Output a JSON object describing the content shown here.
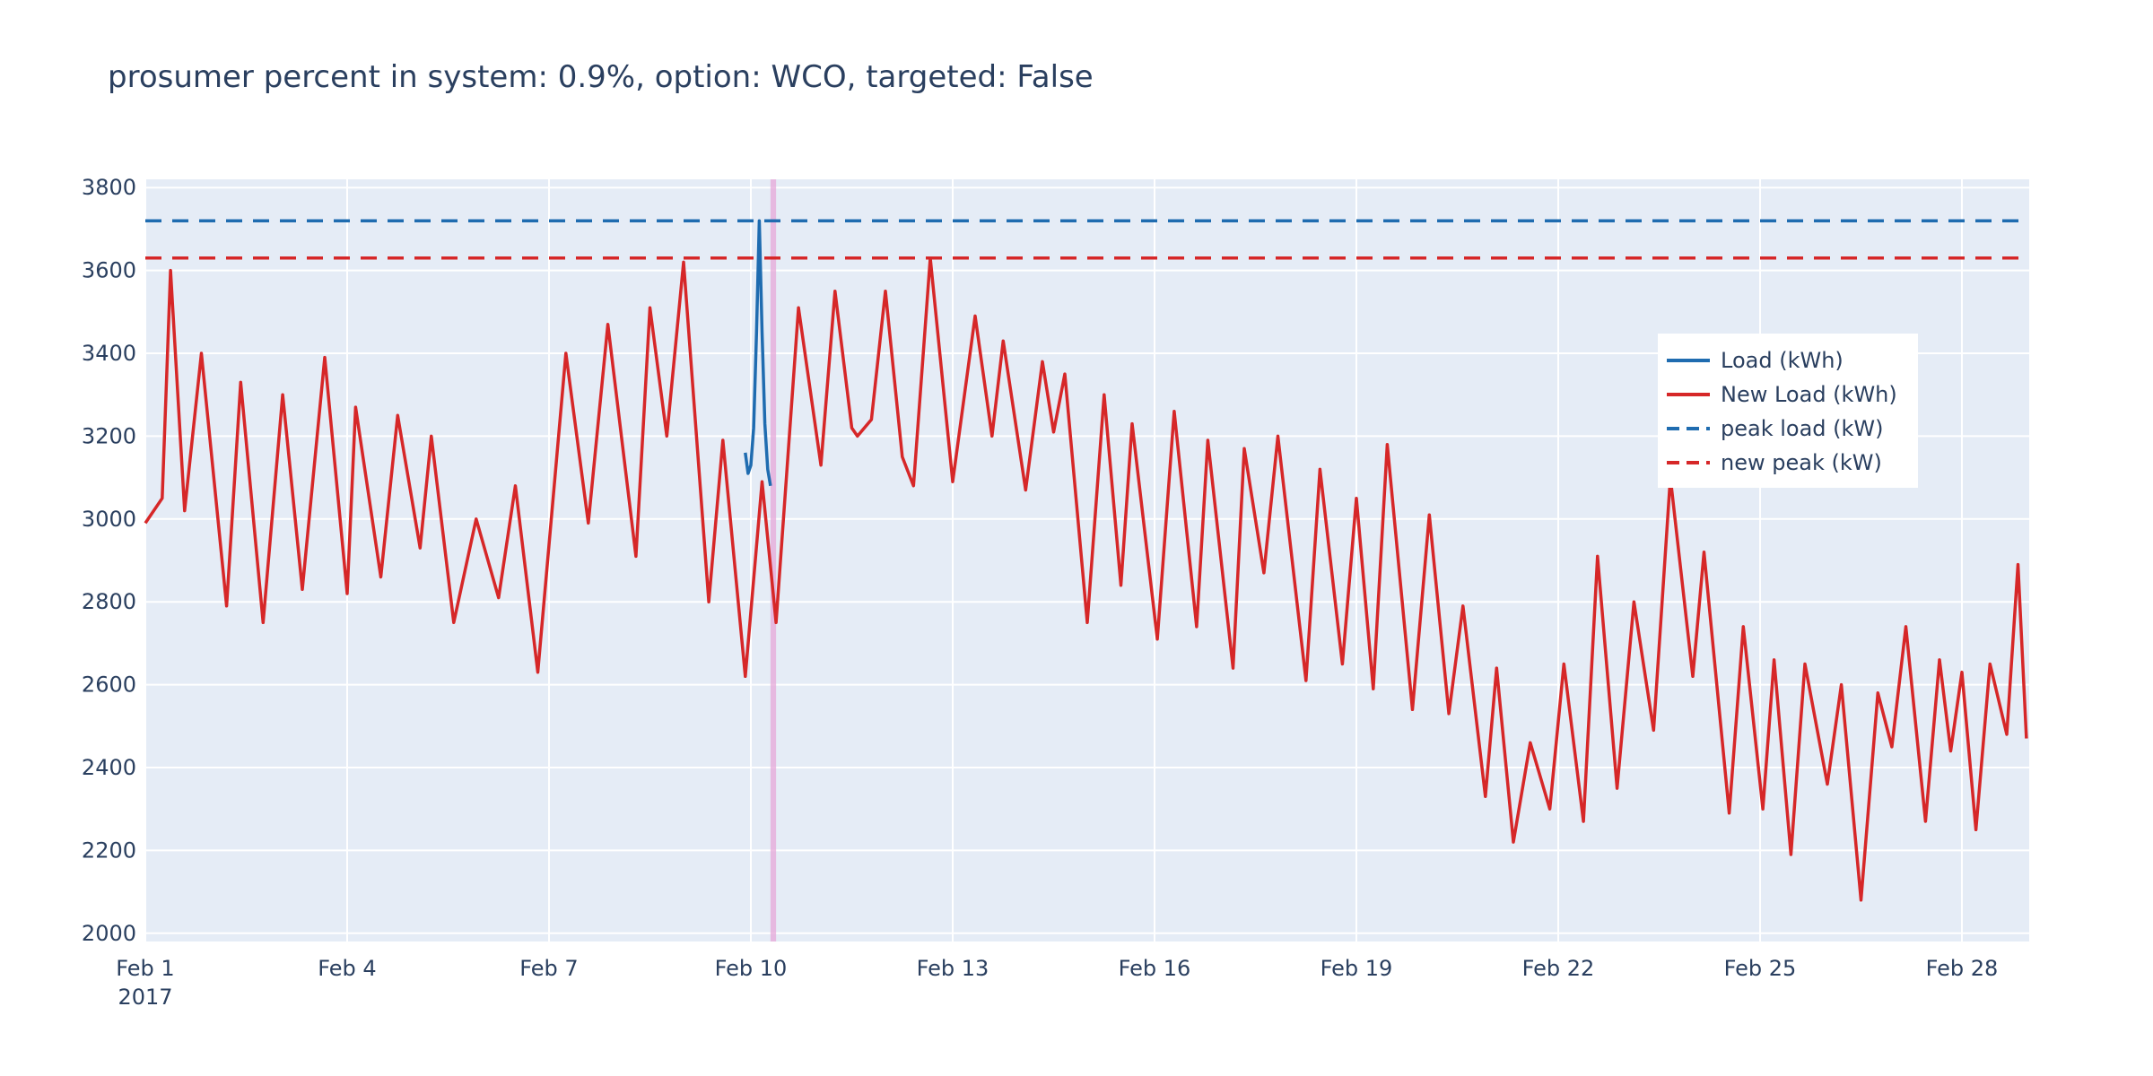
{
  "chart_data": {
    "type": "line",
    "title": "prosumer percent in system: 0.9%, option: WCO, targeted: False",
    "xlabel": "",
    "ylabel": "",
    "x_start": "2017-02-01",
    "x_end": "2017-02-28T23:00",
    "xlim": [
      "2017-02-01",
      "2017-03-01"
    ],
    "ylim": [
      1980,
      3820
    ],
    "y_ticks": [
      2000,
      2200,
      2400,
      2600,
      2800,
      3000,
      3200,
      3400,
      3600,
      3800
    ],
    "x_tick_labels": [
      {
        "date": "2017-02-01",
        "label": "Feb 1",
        "sublabel": "2017"
      },
      {
        "date": "2017-02-04",
        "label": "Feb 4"
      },
      {
        "date": "2017-02-07",
        "label": "Feb 7"
      },
      {
        "date": "2017-02-10",
        "label": "Feb 10"
      },
      {
        "date": "2017-02-13",
        "label": "Feb 13"
      },
      {
        "date": "2017-02-16",
        "label": "Feb 16"
      },
      {
        "date": "2017-02-19",
        "label": "Feb 19"
      },
      {
        "date": "2017-02-22",
        "label": "Feb 22"
      },
      {
        "date": "2017-02-25",
        "label": "Feb 25"
      },
      {
        "date": "2017-02-28",
        "label": "Feb 28"
      }
    ],
    "grid": true,
    "legend_position": "right",
    "highlight_band": {
      "start": "2017-02-10T07:00",
      "end": "2017-02-10T09:00",
      "color": "#e6a8d8"
    },
    "series": [
      {
        "name": "Load (kWh)",
        "style": "solid",
        "color": "#1f6cb0",
        "note_values": "identical to New Load except around Feb 10",
        "segment": {
          "start": "2017-02-09T22:00",
          "values": [
            3160,
            3110,
            3130,
            3220,
            3450,
            3720,
            3450,
            3230,
            3120,
            3080
          ]
        }
      },
      {
        "name": "New Load (kWh)",
        "style": "solid",
        "color": "#d62728",
        "day_peaks": [
          3600,
          3400,
          3330,
          3390,
          3270,
          3250,
          3200,
          3080,
          3400,
          3470,
          3620,
          3190,
          3090,
          3510,
          3550,
          3630,
          3430,
          3380,
          3350,
          3300,
          3230,
          3260,
          3190,
          3200,
          3120,
          3050,
          3180,
          3010,
          2790,
          2640,
          2470,
          2660,
          2910,
          2800,
          3100,
          2920,
          2730,
          2660,
          2650,
          2600,
          2580,
          2740,
          2660,
          2630,
          2650,
          2890,
          2880,
          2780,
          2930,
          2730
        ],
        "series_anchor": [
          [
            "2017-02-01T00:00",
            2990
          ],
          [
            "2017-02-01T06:00",
            3050
          ],
          [
            "2017-02-01T09:00",
            3600
          ],
          [
            "2017-02-01T14:00",
            3020
          ],
          [
            "2017-02-01T20:00",
            3400
          ],
          [
            "2017-02-02T05:00",
            2790
          ],
          [
            "2017-02-02T10:00",
            3330
          ],
          [
            "2017-02-02T18:00",
            2750
          ],
          [
            "2017-02-03T01:00",
            3300
          ],
          [
            "2017-02-03T08:00",
            2830
          ],
          [
            "2017-02-03T16:00",
            3390
          ],
          [
            "2017-02-04T00:00",
            2820
          ],
          [
            "2017-02-04T03:00",
            3270
          ],
          [
            "2017-02-04T12:00",
            2860
          ],
          [
            "2017-02-04T18:00",
            3250
          ],
          [
            "2017-02-05T02:00",
            2930
          ],
          [
            "2017-02-05T06:00",
            3200
          ],
          [
            "2017-02-05T14:00",
            2750
          ],
          [
            "2017-02-05T22:00",
            3000
          ],
          [
            "2017-02-06T06:00",
            2810
          ],
          [
            "2017-02-06T12:00",
            3080
          ],
          [
            "2017-02-06T20:00",
            2630
          ],
          [
            "2017-02-07T06:00",
            3400
          ],
          [
            "2017-02-07T14:00",
            2990
          ],
          [
            "2017-02-07T21:00",
            3470
          ],
          [
            "2017-02-08T07:00",
            2910
          ],
          [
            "2017-02-08T12:00",
            3510
          ],
          [
            "2017-02-08T18:00",
            3200
          ],
          [
            "2017-02-09T00:00",
            3620
          ],
          [
            "2017-02-09T09:00",
            2800
          ],
          [
            "2017-02-09T14:00",
            3190
          ],
          [
            "2017-02-09T22:00",
            2620
          ],
          [
            "2017-02-10T04:00",
            3090
          ],
          [
            "2017-02-10T09:00",
            2750
          ],
          [
            "2017-02-10T17:00",
            3510
          ],
          [
            "2017-02-11T01:00",
            3130
          ],
          [
            "2017-02-11T06:00",
            3550
          ],
          [
            "2017-02-11T12:00",
            3220
          ],
          [
            "2017-02-11T14:00",
            3200
          ],
          [
            "2017-02-11T19:00",
            3240
          ],
          [
            "2017-02-12T00:00",
            3550
          ],
          [
            "2017-02-12T06:00",
            3150
          ],
          [
            "2017-02-12T10:00",
            3080
          ],
          [
            "2017-02-12T16:00",
            3630
          ],
          [
            "2017-02-13T00:00",
            3090
          ],
          [
            "2017-02-13T08:00",
            3490
          ],
          [
            "2017-02-13T14:00",
            3200
          ],
          [
            "2017-02-13T18:00",
            3430
          ],
          [
            "2017-02-14T02:00",
            3070
          ],
          [
            "2017-02-14T08:00",
            3380
          ],
          [
            "2017-02-14T12:00",
            3210
          ],
          [
            "2017-02-14T16:00",
            3350
          ],
          [
            "2017-02-15T00:00",
            2750
          ],
          [
            "2017-02-15T06:00",
            3300
          ],
          [
            "2017-02-15T12:00",
            2840
          ],
          [
            "2017-02-15T16:00",
            3230
          ],
          [
            "2017-02-16T01:00",
            2710
          ],
          [
            "2017-02-16T07:00",
            3260
          ],
          [
            "2017-02-16T15:00",
            2740
          ],
          [
            "2017-02-16T19:00",
            3190
          ],
          [
            "2017-02-17T04:00",
            2640
          ],
          [
            "2017-02-17T08:00",
            3170
          ],
          [
            "2017-02-17T15:00",
            2870
          ],
          [
            "2017-02-17T20:00",
            3200
          ],
          [
            "2017-02-18T06:00",
            2610
          ],
          [
            "2017-02-18T11:00",
            3120
          ],
          [
            "2017-02-18T19:00",
            2650
          ],
          [
            "2017-02-19T00:00",
            3050
          ],
          [
            "2017-02-19T06:00",
            2590
          ],
          [
            "2017-02-19T11:00",
            3180
          ],
          [
            "2017-02-19T20:00",
            2540
          ],
          [
            "2017-02-20T02:00",
            3010
          ],
          [
            "2017-02-20T09:00",
            2530
          ],
          [
            "2017-02-20T14:00",
            2790
          ],
          [
            "2017-02-20T22:00",
            2330
          ],
          [
            "2017-02-21T02:00",
            2640
          ],
          [
            "2017-02-21T08:00",
            2220
          ],
          [
            "2017-02-21T14:00",
            2460
          ],
          [
            "2017-02-21T21:00",
            2300
          ],
          [
            "2017-02-22T02:00",
            2650
          ],
          [
            "2017-02-22T09:00",
            2270
          ],
          [
            "2017-02-22T14:00",
            2910
          ],
          [
            "2017-02-22T21:00",
            2350
          ],
          [
            "2017-02-23T03:00",
            2800
          ],
          [
            "2017-02-23T10:00",
            2490
          ],
          [
            "2017-02-23T16:00",
            3100
          ],
          [
            "2017-02-24T00:00",
            2620
          ],
          [
            "2017-02-24T04:00",
            2920
          ],
          [
            "2017-02-24T13:00",
            2290
          ],
          [
            "2017-02-24T18:00",
            2740
          ],
          [
            "2017-02-25T01:00",
            2300
          ],
          [
            "2017-02-25T05:00",
            2660
          ],
          [
            "2017-02-25T11:00",
            2190
          ],
          [
            "2017-02-25T16:00",
            2650
          ],
          [
            "2017-02-26T00:00",
            2360
          ],
          [
            "2017-02-26T05:00",
            2600
          ],
          [
            "2017-02-26T12:00",
            2080
          ],
          [
            "2017-02-26T18:00",
            2580
          ],
          [
            "2017-02-26T23:00",
            2450
          ],
          [
            "2017-02-27T04:00",
            2740
          ],
          [
            "2017-02-27T11:00",
            2270
          ],
          [
            "2017-02-27T16:00",
            2660
          ],
          [
            "2017-02-27T20:00",
            2440
          ],
          [
            "2017-02-28T00:00",
            2630
          ],
          [
            "2017-02-28T05:00",
            2250
          ],
          [
            "2017-02-28T10:00",
            2650
          ],
          [
            "2017-02-28T16:00",
            2480
          ],
          [
            "2017-02-28T20:00",
            2890
          ],
          [
            "2017-02-28T23:00",
            2470
          ]
        ]
      },
      {
        "name": "peak load (kW)",
        "style": "dash",
        "color": "#1f6cb0",
        "value": 3720
      },
      {
        "name": "new peak (kW)",
        "style": "dash",
        "color": "#d62728",
        "value": 3630
      }
    ]
  },
  "legend": [
    {
      "label": "Load (kWh)",
      "style": "solid",
      "color": "#1f6cb0"
    },
    {
      "label": "New Load (kWh)",
      "style": "solid",
      "color": "#d62728"
    },
    {
      "label": "peak load (kW)",
      "style": "dash",
      "color": "#1f6cb0"
    },
    {
      "label": "new peak (kW)",
      "style": "dash",
      "color": "#d62728"
    }
  ],
  "colors": {
    "plot_bg": "#e5ecf6",
    "grid": "#ffffff",
    "text": "#2a3f5f"
  }
}
